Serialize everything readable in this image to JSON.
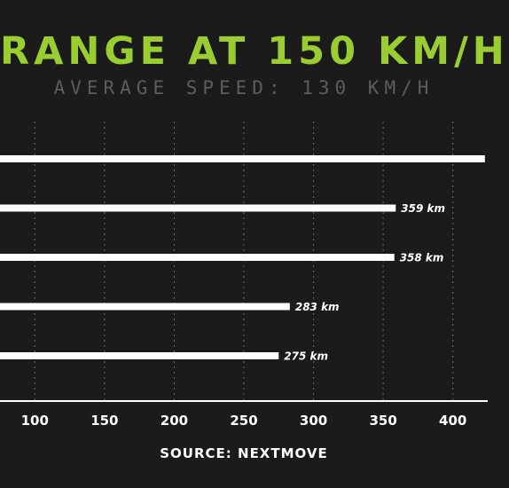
{
  "title": "RANGE AT 150 KM/H",
  "subtitle": "AVERAGE SPEED: 130 KM/H",
  "source": "SOURCE: NEXTMOVE",
  "colors": {
    "background": "#1b1b1b",
    "title": "#9acd32",
    "subtitle": "#5d5d5d",
    "bars": "#ffffff",
    "grid": "#6a6a6a",
    "text": "#ffffff"
  },
  "chart_data": {
    "type": "bar",
    "orientation": "horizontal",
    "title": "RANGE AT 150 KM/H",
    "subtitle": "AVERAGE SPEED: 130 KM/H",
    "xlabel": "",
    "ylabel": "",
    "xlim": [
      75,
      425
    ],
    "xticks": [
      100,
      150,
      200,
      250,
      300,
      350,
      400
    ],
    "grid": "vertical dashed",
    "values": [
      423,
      359,
      358,
      283,
      275
    ],
    "data_labels": [
      "",
      "359 km",
      "358 km",
      "283 km",
      "275 km"
    ]
  }
}
